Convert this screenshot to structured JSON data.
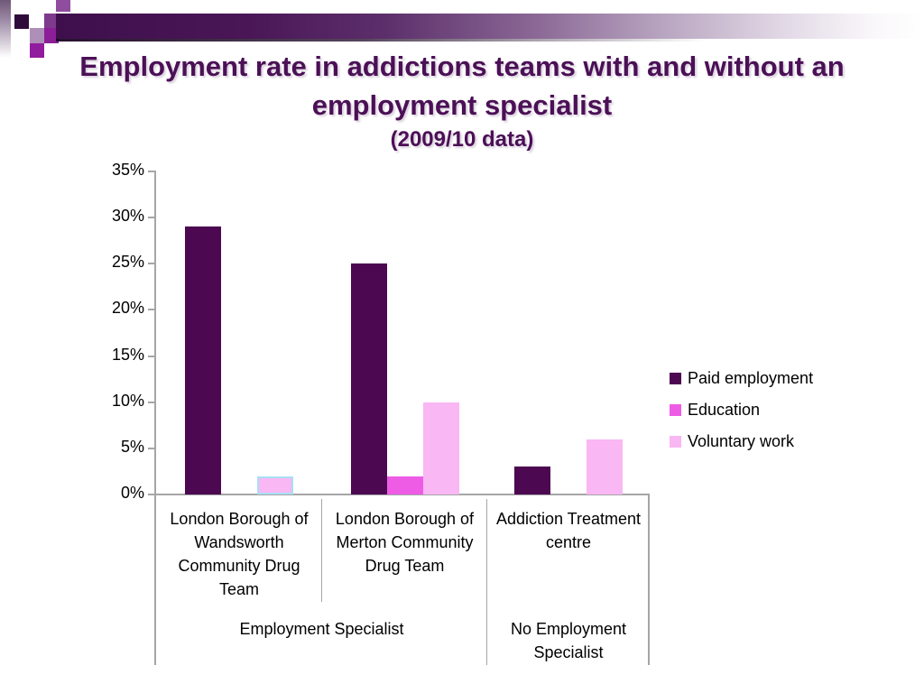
{
  "slide": {
    "title_line1": "Employment rate in addictions teams with and without an",
    "title_line2": "employment specialist",
    "title_line3": "(2009/10 data)",
    "title_color": "#4B1056"
  },
  "chart_data": {
    "type": "bar",
    "title": "Employment rate in addictions teams with and without an employment specialist (2009/10 data)",
    "categories": [
      "London Borough of\nWandsworth\nCommunity Drug\nTeam",
      "London Borough of\nMerton Community\nDrug Team",
      "Addiction Treatment\ncentre"
    ],
    "group_labels": [
      {
        "label": "Employment Specialist",
        "categories": [
          0,
          1
        ]
      },
      {
        "label": "No Employment\nSpecialist",
        "categories": [
          2,
          2
        ]
      }
    ],
    "series": [
      {
        "name": "Paid employment",
        "color": "#4C0850",
        "values": [
          29,
          25,
          3
        ]
      },
      {
        "name": "Education",
        "color": "#EE5CE6",
        "values": [
          0,
          2,
          0
        ]
      },
      {
        "name": "Voluntary work",
        "color": "#F9B7F3",
        "values": [
          2,
          10,
          6
        ]
      }
    ],
    "yticks": [
      "0%",
      "5%",
      "10%",
      "15%",
      "20%",
      "25%",
      "30%",
      "35%"
    ],
    "ylim": [
      0,
      35
    ],
    "xlabel": "",
    "ylabel": "",
    "grid": false,
    "legend_position": "right",
    "axis_color": "#A6A6A6",
    "point_highlight": {
      "series_index": 2,
      "category_index": 0,
      "border_color": "#A8DFF5"
    }
  }
}
